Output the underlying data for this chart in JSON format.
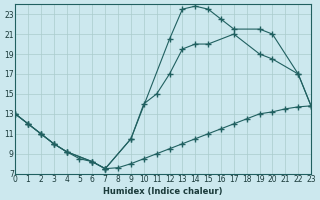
{
  "xlabel": "Humidex (Indice chaleur)",
  "xlim": [
    0,
    23
  ],
  "ylim": [
    7,
    24
  ],
  "yticks": [
    7,
    9,
    11,
    13,
    15,
    17,
    19,
    21,
    23
  ],
  "xticks": [
    0,
    1,
    2,
    3,
    4,
    5,
    6,
    7,
    8,
    9,
    10,
    11,
    12,
    13,
    14,
    15,
    16,
    17,
    18,
    19,
    20,
    21,
    22,
    23
  ],
  "bg_color": "#cce8ee",
  "grid_color": "#aacccc",
  "line_color": "#206060",
  "lines": [
    {
      "x": [
        0,
        1,
        2,
        3,
        4,
        5,
        6,
        7,
        8,
        9,
        10,
        11,
        12,
        13,
        14,
        15,
        16,
        17,
        18,
        19,
        20,
        21,
        22,
        23
      ],
      "y": [
        13,
        12,
        11,
        10,
        9.2,
        8.5,
        8.2,
        7.5,
        7.6,
        8,
        8.5,
        9,
        9.5,
        10,
        10.5,
        11,
        11.5,
        12,
        12.5,
        13,
        13.2,
        13.5,
        13.7,
        13.8
      ]
    },
    {
      "x": [
        0,
        1,
        2,
        3,
        4,
        6,
        7,
        9,
        12,
        13,
        14,
        15,
        16,
        17,
        19,
        20,
        22,
        23
      ],
      "y": [
        13,
        12,
        11,
        10,
        9.2,
        8.2,
        7.5,
        10.5,
        20.5,
        23.5,
        23.8,
        23.5,
        22.5,
        21.5,
        21.5,
        21,
        17,
        13.8
      ]
    },
    {
      "x": [
        0,
        1,
        2,
        3,
        4,
        6,
        7,
        9,
        10,
        11,
        12,
        13,
        14,
        15,
        17,
        19,
        20,
        22,
        23
      ],
      "y": [
        13,
        12,
        11,
        10,
        9.2,
        8.2,
        7.5,
        10.5,
        14,
        15,
        17,
        19.5,
        20,
        20,
        21,
        19,
        18.5,
        17,
        13.8
      ]
    }
  ]
}
